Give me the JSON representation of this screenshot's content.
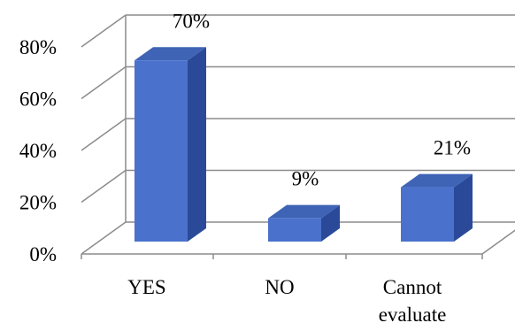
{
  "chart_data": {
    "type": "bar",
    "style": "3d-column",
    "categories": [
      [
        "YES"
      ],
      [
        "NO"
      ],
      [
        "Cannot",
        "evaluate"
      ]
    ],
    "values": [
      70,
      9,
      21
    ],
    "data_labels": [
      "70%",
      "9%",
      "21%"
    ],
    "y_ticks": [
      "0%",
      "20%",
      "40%",
      "60%",
      "80%"
    ],
    "ylim": [
      0,
      80
    ],
    "grid": true,
    "legend": "none",
    "colors": {
      "bar_front": "#4a72cc",
      "bar_top": "#3f63b5",
      "bar_side": "#2a4a99",
      "grid": "#8c8c8c",
      "floor": "#8c8c8c"
    }
  }
}
